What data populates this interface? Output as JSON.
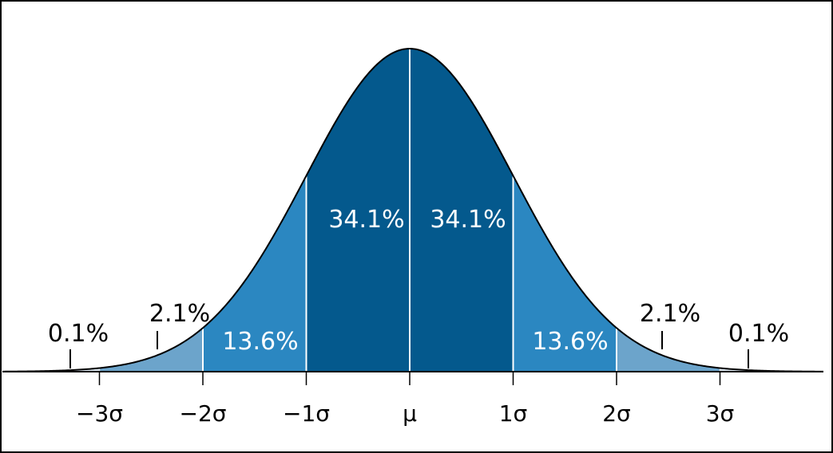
{
  "chart_data": {
    "type": "area",
    "title": "",
    "xlabel": "",
    "ylabel": "",
    "x_range_sigma": [
      -3.9,
      3.9
    ],
    "x_ticks": [
      {
        "value": -3,
        "label": "−3σ"
      },
      {
        "value": -2,
        "label": "−2σ"
      },
      {
        "value": -1,
        "label": "−1σ"
      },
      {
        "value": 0,
        "label": "μ"
      },
      {
        "value": 1,
        "label": "1σ"
      },
      {
        "value": 2,
        "label": "2σ"
      },
      {
        "value": 3,
        "label": "3σ"
      }
    ],
    "bands": [
      {
        "from": -3,
        "to": -2,
        "percent": 2.1,
        "label": "2.1%",
        "color": "#6ca4cb"
      },
      {
        "from": -2,
        "to": -1,
        "percent": 13.6,
        "label": "13.6%",
        "color": "#2b87c1"
      },
      {
        "from": -1,
        "to": 0,
        "percent": 34.1,
        "label": "34.1%",
        "color": "#04598d"
      },
      {
        "from": 0,
        "to": 1,
        "percent": 34.1,
        "label": "34.1%",
        "color": "#04598d"
      },
      {
        "from": 1,
        "to": 2,
        "percent": 13.6,
        "label": "13.6%",
        "color": "#2b87c1"
      },
      {
        "from": 2,
        "to": 3,
        "percent": 2.1,
        "label": "2.1%",
        "color": "#6ca4cb"
      }
    ],
    "tails": [
      {
        "side": "left",
        "percent": 0.1,
        "label": "0.1%"
      },
      {
        "side": "right",
        "percent": 0.1,
        "label": "0.1%"
      }
    ],
    "grid": false,
    "legend": "none"
  },
  "colors": {
    "curve": "#000000",
    "tail_fill": "#dde8f1",
    "divider": "#ffffff",
    "label_on_fill": "#ffffff",
    "label_outside": "#000000"
  }
}
